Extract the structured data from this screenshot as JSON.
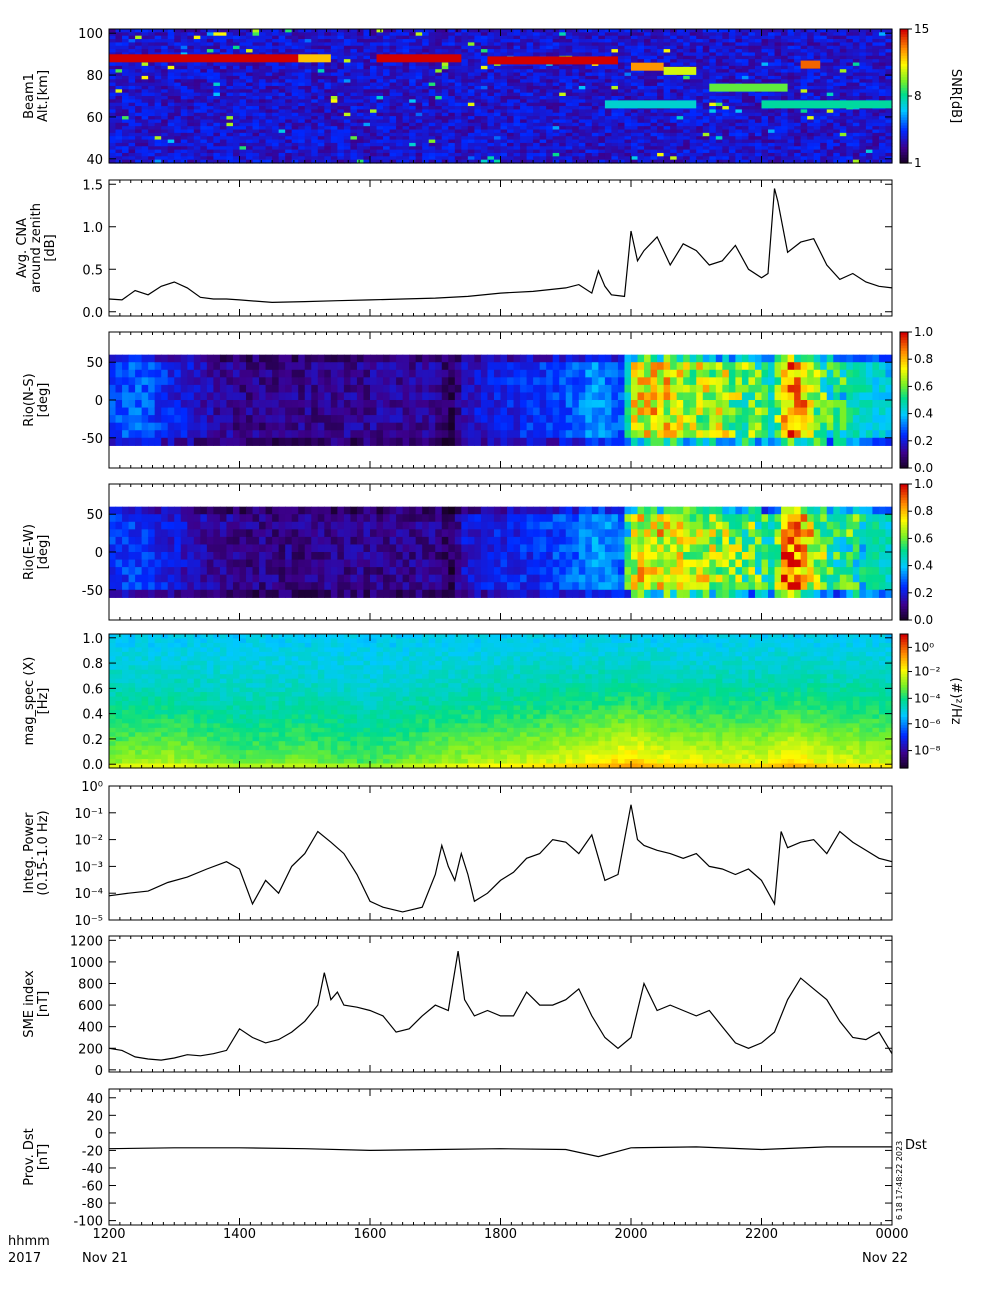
{
  "time_axis": {
    "ticks": [
      "1200",
      "1400",
      "1600",
      "1800",
      "2000",
      "2200",
      "0000"
    ],
    "row_label_top": "hhmm",
    "row_label_bottom": "2017",
    "start_date": "Nov 21",
    "end_date": "Nov 22"
  },
  "colors": {
    "line": "#000000",
    "plot_background": "#ffffff"
  },
  "chart_data": [
    {
      "id": "beam1",
      "type": "heatmap",
      "ylabel": "Beam1\nAlt.[km]",
      "ylim": [
        38,
        102
      ],
      "yticks": [
        "100",
        "80",
        "60",
        "40"
      ],
      "ytick_values": [
        100,
        80,
        60,
        40
      ],
      "colorbar": {
        "label": "SNR[dB]",
        "ticks": [
          "15",
          "8",
          "1"
        ],
        "tick_fracs": [
          1.0,
          0.5,
          0.0
        ],
        "colormap": "rainbow"
      },
      "features": [
        {
          "x_start": 12.0,
          "x_end": 14.9,
          "alt": 88,
          "level": 1.0
        },
        {
          "x_start": 14.9,
          "x_end": 15.4,
          "alt": 88,
          "level": 0.8
        },
        {
          "x_start": 16.1,
          "x_end": 17.4,
          "alt": 88,
          "level": 1.0
        },
        {
          "x_start": 17.8,
          "x_end": 19.8,
          "alt": 87,
          "level": 1.0
        },
        {
          "x_start": 20.0,
          "x_end": 20.5,
          "alt": 84,
          "level": 0.85
        },
        {
          "x_start": 20.5,
          "x_end": 21.0,
          "alt": 82,
          "level": 0.7
        },
        {
          "x_start": 21.2,
          "x_end": 22.4,
          "alt": 74,
          "level": 0.6
        },
        {
          "x_start": 22.6,
          "x_end": 22.9,
          "alt": 85,
          "level": 0.9
        },
        {
          "x_start": 19.6,
          "x_end": 21.0,
          "alt": 66,
          "level": 0.45
        },
        {
          "x_start": 22.0,
          "x_end": 24.0,
          "alt": 66,
          "level": 0.5
        }
      ]
    },
    {
      "id": "cna",
      "type": "line",
      "ylabel": "Avg. CNA\naround zenith\n[dB]",
      "ylim": [
        -0.05,
        1.55
      ],
      "yticks": [
        "1.5",
        "1.0",
        "0.5",
        "0.0"
      ],
      "ytick_values": [
        1.5,
        1.0,
        0.5,
        0.0
      ],
      "x": [
        12.0,
        12.2,
        12.4,
        12.6,
        12.8,
        13.0,
        13.2,
        13.4,
        13.6,
        13.8,
        14.0,
        14.5,
        15.0,
        15.5,
        16.0,
        16.5,
        17.0,
        17.5,
        18.0,
        18.5,
        19.0,
        19.2,
        19.4,
        19.5,
        19.6,
        19.7,
        19.9,
        20.0,
        20.1,
        20.2,
        20.4,
        20.6,
        20.8,
        21.0,
        21.2,
        21.4,
        21.6,
        21.8,
        22.0,
        22.1,
        22.2,
        22.25,
        22.4,
        22.6,
        22.8,
        23.0,
        23.2,
        23.4,
        23.6,
        23.8,
        24.0
      ],
      "y": [
        0.15,
        0.14,
        0.25,
        0.2,
        0.3,
        0.35,
        0.28,
        0.17,
        0.15,
        0.15,
        0.14,
        0.11,
        0.12,
        0.13,
        0.14,
        0.15,
        0.16,
        0.18,
        0.22,
        0.24,
        0.28,
        0.32,
        0.22,
        0.48,
        0.3,
        0.2,
        0.18,
        0.95,
        0.6,
        0.72,
        0.88,
        0.55,
        0.8,
        0.72,
        0.55,
        0.6,
        0.78,
        0.5,
        0.4,
        0.45,
        1.45,
        1.3,
        0.7,
        0.82,
        0.86,
        0.55,
        0.38,
        0.45,
        0.35,
        0.3,
        0.28
      ]
    },
    {
      "id": "rio_ns",
      "type": "heatmap",
      "ylabel": "Rio(N-S)\n[deg]",
      "ylim": [
        -90,
        90
      ],
      "yticks": [
        "50",
        "0",
        "-50"
      ],
      "ytick_values": [
        50,
        0,
        -50
      ],
      "band": [
        -60,
        60
      ],
      "colorbar": {
        "label": "",
        "ticks": [
          "1.0",
          "0.8",
          "0.6",
          "0.4",
          "0.2",
          "0.0"
        ],
        "tick_fracs": [
          1.0,
          0.8,
          0.6,
          0.4,
          0.2,
          0.0
        ],
        "colormap": "rainbow"
      },
      "x": [
        12.0,
        12.5,
        13.0,
        13.5,
        14.0,
        15.0,
        16.0,
        17.0,
        17.3,
        17.4,
        18.0,
        18.8,
        19.5,
        19.9,
        20.0,
        20.4,
        21.0,
        21.5,
        22.0,
        22.2,
        22.3,
        22.5,
        23.0,
        24.0
      ],
      "activity": [
        0.28,
        0.3,
        0.22,
        0.16,
        0.12,
        0.12,
        0.13,
        0.14,
        0.05,
        0.18,
        0.22,
        0.26,
        0.35,
        0.28,
        0.7,
        0.75,
        0.68,
        0.65,
        0.55,
        0.45,
        0.85,
        0.88,
        0.55,
        0.4
      ]
    },
    {
      "id": "rio_ew",
      "type": "heatmap",
      "ylabel": "Rio(E-W)\n[deg]",
      "ylim": [
        -90,
        90
      ],
      "yticks": [
        "50",
        "0",
        "-50"
      ],
      "ytick_values": [
        50,
        0,
        -50
      ],
      "band": [
        -60,
        60
      ],
      "colorbar": {
        "label": "",
        "ticks": [
          "1.0",
          "0.8",
          "0.6",
          "0.4",
          "0.2",
          "0.0"
        ],
        "tick_fracs": [
          1.0,
          0.8,
          0.6,
          0.4,
          0.2,
          0.0
        ],
        "colormap": "rainbow"
      },
      "x": [
        12.0,
        12.5,
        13.0,
        13.5,
        14.0,
        15.0,
        16.0,
        17.0,
        17.3,
        17.4,
        18.0,
        18.8,
        19.5,
        19.9,
        20.0,
        20.4,
        21.0,
        21.5,
        22.0,
        22.2,
        22.3,
        22.5,
        23.0,
        24.0
      ],
      "activity": [
        0.25,
        0.26,
        0.2,
        0.15,
        0.12,
        0.11,
        0.12,
        0.12,
        0.05,
        0.18,
        0.22,
        0.26,
        0.36,
        0.3,
        0.72,
        0.75,
        0.7,
        0.66,
        0.55,
        0.45,
        0.88,
        0.9,
        0.58,
        0.45
      ]
    },
    {
      "id": "mag_spec",
      "type": "heatmap",
      "ylabel": "mag_spec (X)\n[Hz]",
      "ylim": [
        -0.03,
        1.03
      ],
      "yticks": [
        "1.0",
        "0.8",
        "0.6",
        "0.4",
        "0.2",
        "0.0"
      ],
      "ytick_values": [
        1.0,
        0.8,
        0.6,
        0.4,
        0.2,
        0.0
      ],
      "colorbar": {
        "label": "(#)²/Hz",
        "ticks": [
          "10⁰",
          "10⁻²",
          "10⁻⁴",
          "10⁻⁶",
          "10⁻⁸"
        ],
        "tick_fracs": [
          0.9,
          0.72,
          0.52,
          0.33,
          0.13
        ],
        "colormap": "rainbow"
      },
      "x": [
        12.0,
        13.0,
        14.0,
        15.0,
        16.0,
        17.0,
        18.0,
        19.0,
        20.0,
        20.5,
        21.0,
        22.0,
        22.5,
        23.0,
        24.0
      ],
      "activity": [
        0.35,
        0.38,
        0.25,
        0.3,
        0.2,
        0.35,
        0.42,
        0.5,
        0.65,
        0.55,
        0.52,
        0.5,
        0.62,
        0.5,
        0.45
      ]
    },
    {
      "id": "integ_power",
      "type": "line",
      "ylabel": "Integ. Power\n(0.15-1.0 Hz)",
      "yscale": "log",
      "ylim": [
        1e-05,
        1.0
      ],
      "yticks": [
        "10⁰",
        "10⁻¹",
        "10⁻²",
        "10⁻³",
        "10⁻⁴",
        "10⁻⁵"
      ],
      "ytick_values": [
        1,
        0.1,
        0.01,
        0.001,
        0.0001,
        1e-05
      ],
      "x": [
        12.0,
        12.3,
        12.6,
        12.9,
        13.2,
        13.5,
        13.8,
        14.0,
        14.2,
        14.4,
        14.6,
        14.8,
        15.0,
        15.2,
        15.4,
        15.6,
        15.8,
        16.0,
        16.2,
        16.5,
        16.8,
        17.0,
        17.1,
        17.2,
        17.3,
        17.4,
        17.5,
        17.6,
        17.8,
        18.0,
        18.2,
        18.4,
        18.6,
        18.8,
        19.0,
        19.2,
        19.4,
        19.6,
        19.8,
        20.0,
        20.1,
        20.2,
        20.4,
        20.6,
        20.8,
        21.0,
        21.2,
        21.4,
        21.6,
        21.8,
        22.0,
        22.2,
        22.3,
        22.4,
        22.6,
        22.8,
        23.0,
        23.2,
        23.4,
        23.6,
        23.8,
        24.0
      ],
      "y": [
        8e-05,
        0.0001,
        0.00012,
        0.00025,
        0.0004,
        0.0008,
        0.0015,
        0.0008,
        4e-05,
        0.0003,
        0.0001,
        0.001,
        0.003,
        0.02,
        0.008,
        0.003,
        0.0005,
        5e-05,
        3e-05,
        2e-05,
        3e-05,
        0.0005,
        0.006,
        0.001,
        0.0003,
        0.003,
        0.0005,
        5e-05,
        0.0001,
        0.0003,
        0.0006,
        0.002,
        0.003,
        0.01,
        0.008,
        0.003,
        0.015,
        0.0003,
        0.0005,
        0.2,
        0.01,
        0.006,
        0.004,
        0.003,
        0.002,
        0.003,
        0.001,
        0.0008,
        0.0005,
        0.0008,
        0.0003,
        4e-05,
        0.02,
        0.005,
        0.008,
        0.01,
        0.003,
        0.02,
        0.008,
        0.004,
        0.002,
        0.0015
      ]
    },
    {
      "id": "sme",
      "type": "line",
      "ylabel": "SME index\n[nT]",
      "ylim": [
        -20,
        1240
      ],
      "yticks": [
        "1200",
        "1000",
        "800",
        "600",
        "400",
        "200",
        "0"
      ],
      "ytick_values": [
        1200,
        1000,
        800,
        600,
        400,
        200,
        0
      ],
      "x": [
        12.0,
        12.2,
        12.4,
        12.6,
        12.8,
        13.0,
        13.2,
        13.4,
        13.6,
        13.8,
        14.0,
        14.2,
        14.4,
        14.6,
        14.8,
        15.0,
        15.2,
        15.3,
        15.4,
        15.5,
        15.6,
        15.8,
        16.0,
        16.2,
        16.4,
        16.6,
        16.8,
        17.0,
        17.2,
        17.35,
        17.45,
        17.6,
        17.8,
        18.0,
        18.2,
        18.4,
        18.6,
        18.8,
        19.0,
        19.2,
        19.4,
        19.6,
        19.8,
        20.0,
        20.2,
        20.4,
        20.6,
        20.8,
        21.0,
        21.2,
        21.4,
        21.6,
        21.8,
        22.0,
        22.2,
        22.4,
        22.6,
        22.8,
        23.0,
        23.2,
        23.4,
        23.6,
        23.8,
        24.0
      ],
      "y": [
        200,
        180,
        120,
        100,
        90,
        110,
        140,
        130,
        150,
        180,
        380,
        300,
        250,
        280,
        350,
        450,
        600,
        900,
        650,
        720,
        600,
        580,
        550,
        500,
        350,
        380,
        500,
        600,
        550,
        1100,
        650,
        500,
        550,
        500,
        500,
        720,
        600,
        600,
        650,
        750,
        500,
        300,
        200,
        300,
        800,
        550,
        600,
        550,
        500,
        550,
        400,
        250,
        200,
        250,
        350,
        650,
        850,
        750,
        650,
        450,
        300,
        280,
        350,
        150
      ]
    },
    {
      "id": "dst",
      "type": "line",
      "ylabel": "Prov. Dst\n[nT]",
      "ylim": [
        -105,
        50
      ],
      "yticks": [
        "40",
        "20",
        "0",
        "-20",
        "-40",
        "-60",
        "-80",
        "-100"
      ],
      "ytick_values": [
        40,
        20,
        0,
        -20,
        -40,
        -60,
        -80,
        -100
      ],
      "legend": "Dst",
      "stamp": "6 18 17:48:22 2023",
      "x": [
        12.0,
        13.0,
        14.0,
        15.0,
        16.0,
        17.0,
        18.0,
        19.0,
        19.5,
        20.0,
        21.0,
        22.0,
        23.0,
        24.0
      ],
      "y": [
        -18,
        -17,
        -17,
        -18,
        -20,
        -19,
        -18,
        -19,
        -27,
        -17,
        -16,
        -19,
        -16,
        -16
      ]
    }
  ]
}
